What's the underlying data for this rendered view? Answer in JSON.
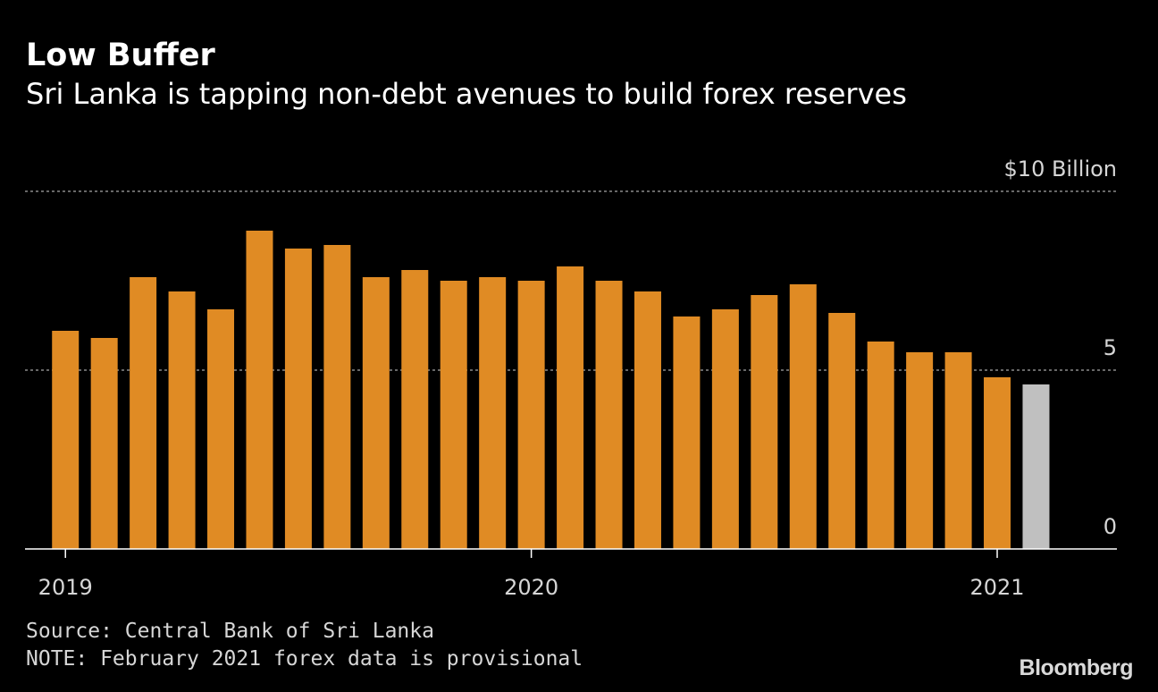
{
  "header": {
    "title": "Low Buffer",
    "subtitle": "Sri Lanka is tapping non-debt avenues to build forex reserves"
  },
  "footer": {
    "source": "Source: Central Bank of Sri Lanka",
    "note": "NOTE: February 2021 forex data is provisional",
    "logo": "Bloomberg"
  },
  "colors": {
    "background": "#000000",
    "bar": "#e08b24",
    "provisional_bar": "#c0c0c0",
    "grid": "#8a8a8a",
    "text": "#ffffff"
  },
  "chart_data": {
    "type": "bar",
    "title": "Low Buffer",
    "subtitle": "Sri Lanka is tapping non-debt avenues to build forex reserves",
    "unit": "$",
    "ylim": [
      0,
      10
    ],
    "yticks": [
      {
        "value": 10,
        "label": "10"
      },
      {
        "value": 5,
        "label": "5"
      },
      {
        "value": 0,
        "label": "0"
      }
    ],
    "ytick_unit_prefix": "$",
    "ytick_unit_suffix": "Billion",
    "grid": true,
    "categories": [
      "2019-01",
      "2019-02",
      "2019-03",
      "2019-04",
      "2019-05",
      "2019-06",
      "2019-07",
      "2019-08",
      "2019-09",
      "2019-10",
      "2019-11",
      "2019-12",
      "2020-01",
      "2020-02",
      "2020-03",
      "2020-04",
      "2020-05",
      "2020-06",
      "2020-07",
      "2020-08",
      "2020-09",
      "2020-10",
      "2020-11",
      "2020-12",
      "2021-01",
      "2021-02"
    ],
    "values": [
      6.1,
      5.9,
      7.6,
      7.2,
      6.7,
      8.9,
      8.4,
      8.5,
      7.6,
      7.8,
      7.5,
      7.6,
      7.5,
      7.9,
      7.5,
      7.2,
      6.5,
      6.7,
      7.1,
      7.4,
      6.6,
      5.8,
      5.5,
      5.5,
      4.8,
      4.6
    ],
    "provisional_index": 25,
    "xticks": [
      {
        "index": 0,
        "label": "2019"
      },
      {
        "index": 12,
        "label": "2020"
      },
      {
        "index": 24,
        "label": "2021"
      }
    ]
  }
}
